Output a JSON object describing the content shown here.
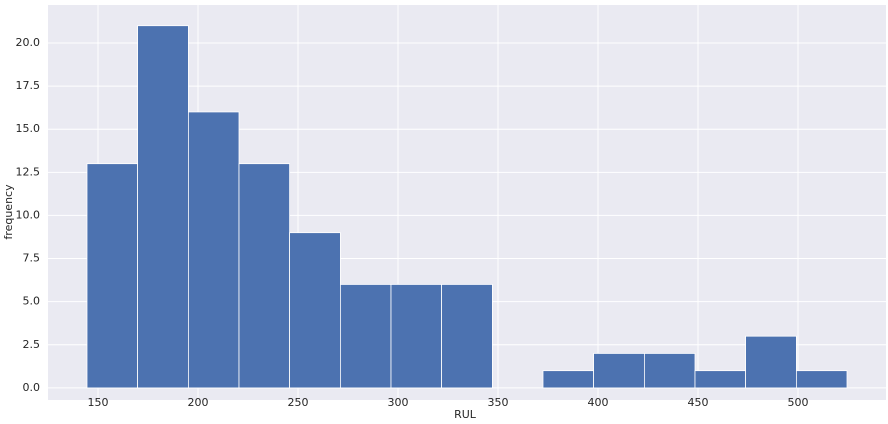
{
  "chart_data": {
    "type": "histogram",
    "x_label": "RUL",
    "y_label": "frequency",
    "bins": [
      144.5,
      169.8,
      195.2,
      220.5,
      245.8,
      271.2,
      296.5,
      321.8,
      347.2,
      372.5,
      397.8,
      423.2,
      448.5,
      473.8,
      499.2,
      524.5
    ],
    "counts": [
      13,
      21,
      16,
      13,
      9,
      6,
      6,
      6,
      0,
      1,
      2,
      2,
      1,
      3,
      1
    ],
    "color": "#4c72b0",
    "xlim": [
      125,
      544
    ],
    "xticks": [
      150,
      200,
      250,
      300,
      350,
      400,
      450,
      500
    ],
    "ylim": [
      -0.7,
      22.2
    ],
    "yticks": [
      {
        "value": 0,
        "label": "0.0"
      },
      {
        "value": 2.5,
        "label": "2.5"
      },
      {
        "value": 5,
        "label": "5.0"
      },
      {
        "value": 7.5,
        "label": "7.5"
      },
      {
        "value": 10,
        "label": "10.0"
      },
      {
        "value": 12.5,
        "label": "12.5"
      },
      {
        "value": 15,
        "label": "15.0"
      },
      {
        "value": 17.5,
        "label": "17.5"
      },
      {
        "value": 20,
        "label": "20.0"
      }
    ],
    "grid": true
  }
}
